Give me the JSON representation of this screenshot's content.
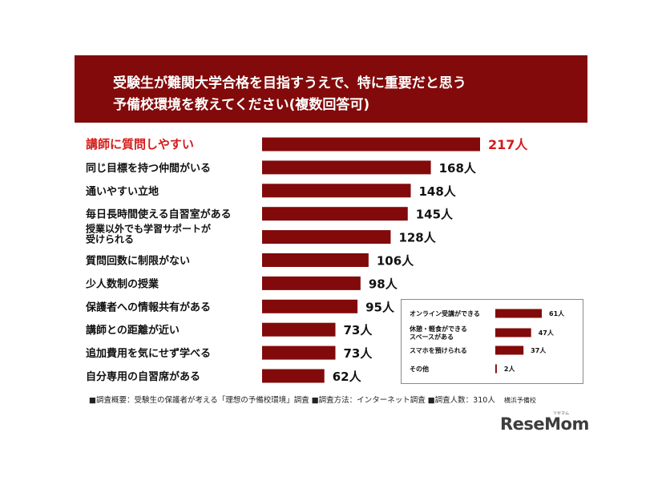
{
  "title_lines": [
    "受験生が難関大学合格を目指すうえで、特に重要だと思う",
    "予備校環境を教えてください(複数回答可)"
  ],
  "highlight_color": "#d41b1b",
  "bar_color": "#820a0a",
  "chart_data": [
    {
      "type": "bar",
      "orientation": "horizontal",
      "title": "受験生が難関大学合格を目指すうえで、特に重要だと思う予備校環境を教えてください(複数回答可)",
      "categories": [
        [
          "講師に質問しやすい"
        ],
        [
          "同じ目標を持つ仲間がいる"
        ],
        [
          "通いやすい立地"
        ],
        [
          "毎日長時間使える自習室がある"
        ],
        [
          "授業以外でも学習サポートが",
          "受けられる"
        ],
        [
          "質問回数に制限がない"
        ],
        [
          "少人数制の授業"
        ],
        [
          "保護者への情報共有がある"
        ],
        [
          "講師との距離が近い"
        ],
        [
          "追加費用を気にせず学べる"
        ],
        [
          "自分専用の自習席がある"
        ]
      ],
      "values": [
        217,
        168,
        148,
        145,
        128,
        106,
        98,
        95,
        73,
        73,
        62
      ],
      "value_labels": [
        "217人",
        "168人",
        "148人",
        "145人",
        "128人",
        "106人",
        "98人",
        "95人",
        "73人",
        "73人",
        "62人"
      ],
      "highlighted_index": 0
    },
    {
      "type": "bar",
      "orientation": "horizontal",
      "categories": [
        [
          "オンライン受講ができる"
        ],
        [
          "休憩・軽食ができる",
          "スペースがある"
        ],
        [
          "スマホを預けられる"
        ],
        [
          "その他"
        ]
      ],
      "values": [
        61,
        47,
        37,
        2
      ],
      "value_labels": [
        "61人",
        "47人",
        "37人",
        "2人"
      ]
    }
  ],
  "footnote": "■調査概要：受験生の保護者が考える「理想の予備校環境」調査 ■調査方法：インターネット調査 ■調査人数：310人",
  "footnote_source": "横浜予備校",
  "logo": {
    "text": "ReseMom",
    "ruby": "リセマム"
  }
}
